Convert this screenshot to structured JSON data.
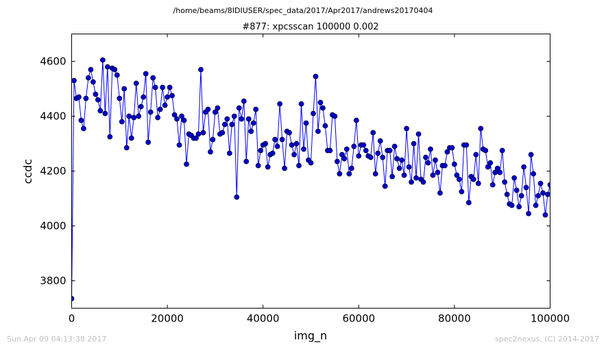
{
  "header": {
    "file_path": "/home/beams/8IDIUSER/spec_data/2017/Apr2017/andrews20170404"
  },
  "footer": {
    "timestamp": "Sun Apr 09 04:13:38 2017",
    "credit": "spec2nexus, (C) 2014-2017"
  },
  "colors": {
    "series": "#0000ff",
    "marker_fill": "#0000cc",
    "axis": "#000000",
    "footer_text": "#c0c0c0"
  },
  "chart_data": {
    "type": "line",
    "title": "#877: xpcsscan 100000 0.002",
    "xlabel": "img_n",
    "ylabel": "ccdc",
    "xlim": [
      0,
      100000
    ],
    "ylim": [
      3700,
      4700
    ],
    "xticks": [
      0,
      20000,
      40000,
      60000,
      80000,
      100000
    ],
    "yticks": [
      3800,
      4000,
      4200,
      4400,
      4600
    ],
    "grid": false,
    "legend": "none",
    "marker": "circle",
    "series": [
      {
        "x": [
          0,
          500,
          1000,
          1500,
          2000,
          2500,
          3000,
          3500,
          4000,
          4500,
          5000,
          5500,
          6000,
          6500,
          7000,
          7500,
          8000,
          8500,
          9000,
          9500,
          10000,
          10500,
          11000,
          11500,
          12000,
          12500,
          13000,
          13500,
          14000,
          14500,
          15000,
          15500,
          16000,
          16500,
          17000,
          17500,
          18000,
          18500,
          19000,
          19500,
          20000,
          20500,
          21000,
          21500,
          22000,
          22500,
          23000,
          23500,
          24000,
          24500,
          25000,
          25500,
          26000,
          26500,
          27000,
          27500,
          28000,
          28500,
          29000,
          29500,
          30000,
          30500,
          31000,
          31500,
          32000,
          32500,
          33000,
          33500,
          34000,
          34500,
          35000,
          35500,
          36000,
          36500,
          37000,
          37500,
          38000,
          38500,
          39000,
          39500,
          40000,
          40500,
          41000,
          41500,
          42000,
          42500,
          43000,
          43500,
          44000,
          44500,
          45000,
          45500,
          46000,
          46500,
          47000,
          47500,
          48000,
          48500,
          49000,
          49500,
          50000,
          50500,
          51000,
          51500,
          52000,
          52500,
          53000,
          53500,
          54000,
          54500,
          55000,
          55500,
          56000,
          56500,
          57000,
          57500,
          58000,
          58500,
          59000,
          59500,
          60000,
          60500,
          61000,
          61500,
          62000,
          62500,
          63000,
          63500,
          64000,
          64500,
          65000,
          65500,
          66000,
          66500,
          67000,
          67500,
          68000,
          68500,
          69000,
          69500,
          70000,
          70500,
          71000,
          71500,
          72000,
          72500,
          73000,
          73500,
          74000,
          74500,
          75000,
          75500,
          76000,
          76500,
          77000,
          77500,
          78000,
          78500,
          79000,
          79500,
          80000,
          80500,
          81000,
          81500,
          82000,
          82500,
          83000,
          83500,
          84000,
          84500,
          85000,
          85500,
          86000,
          86500,
          87000,
          87500,
          88000,
          88500,
          89000,
          89500,
          90000,
          90500,
          91000,
          91500,
          92000,
          92500,
          93000,
          93500,
          94000,
          94500,
          95000,
          95500,
          96000,
          96500,
          97000,
          97500,
          98000,
          98500,
          99000,
          99500,
          100000
        ],
        "y": [
          3735,
          4530,
          4465,
          4470,
          4385,
          4355,
          4465,
          4540,
          4570,
          4525,
          4480,
          4460,
          4420,
          4605,
          4410,
          4580,
          4325,
          4575,
          4570,
          4550,
          4465,
          4380,
          4500,
          4285,
          4400,
          4320,
          4395,
          4520,
          4400,
          4435,
          4470,
          4555,
          4305,
          4415,
          4540,
          4505,
          4395,
          4425,
          4505,
          4440,
          4470,
          4505,
          4475,
          4405,
          4390,
          4295,
          4400,
          4385,
          4225,
          4335,
          4330,
          4320,
          4320,
          4335,
          4570,
          4340,
          4415,
          4425,
          4270,
          4315,
          4415,
          4430,
          4335,
          4340,
          4370,
          4390,
          4265,
          4370,
          4400,
          4105,
          4430,
          4390,
          4455,
          4235,
          4390,
          4345,
          4375,
          4425,
          4220,
          4275,
          4295,
          4300,
          4215,
          4260,
          4265,
          4315,
          4290,
          4445,
          4315,
          4210,
          4345,
          4340,
          4295,
          4260,
          4300,
          4220,
          4445,
          4280,
          4375,
          4240,
          4230,
          4410,
          4545,
          4345,
          4450,
          4430,
          4365,
          4275,
          4275,
          4405,
          4400,
          4235,
          4190,
          4260,
          4245,
          4280,
          4190,
          4210,
          4290,
          4385,
          4255,
          4295,
          4295,
          4275,
          4255,
          4250,
          4340,
          4190,
          4265,
          4310,
          4250,
          4145,
          4275,
          4275,
          4180,
          4290,
          4245,
          4210,
          4240,
          4185,
          4355,
          4215,
          4160,
          4300,
          4175,
          4335,
          4170,
          4160,
          4250,
          4230,
          4280,
          4185,
          4240,
          4195,
          4120,
          4220,
          4220,
          4270,
          4285,
          4285,
          4225,
          4185,
          4170,
          4125,
          4295,
          4295,
          4085,
          4180,
          4170,
          4260,
          4155,
          4355,
          4280,
          4275,
          4215,
          4230,
          4150,
          4195,
          4210,
          4195,
          4275,
          4160,
          4115,
          4080,
          4075,
          4175,
          4130,
          4070,
          4110,
          4215,
          4140,
          4045,
          4260,
          4190,
          4075,
          4110,
          4155,
          4120,
          4040,
          4115,
          4150
        ]
      }
    ]
  }
}
